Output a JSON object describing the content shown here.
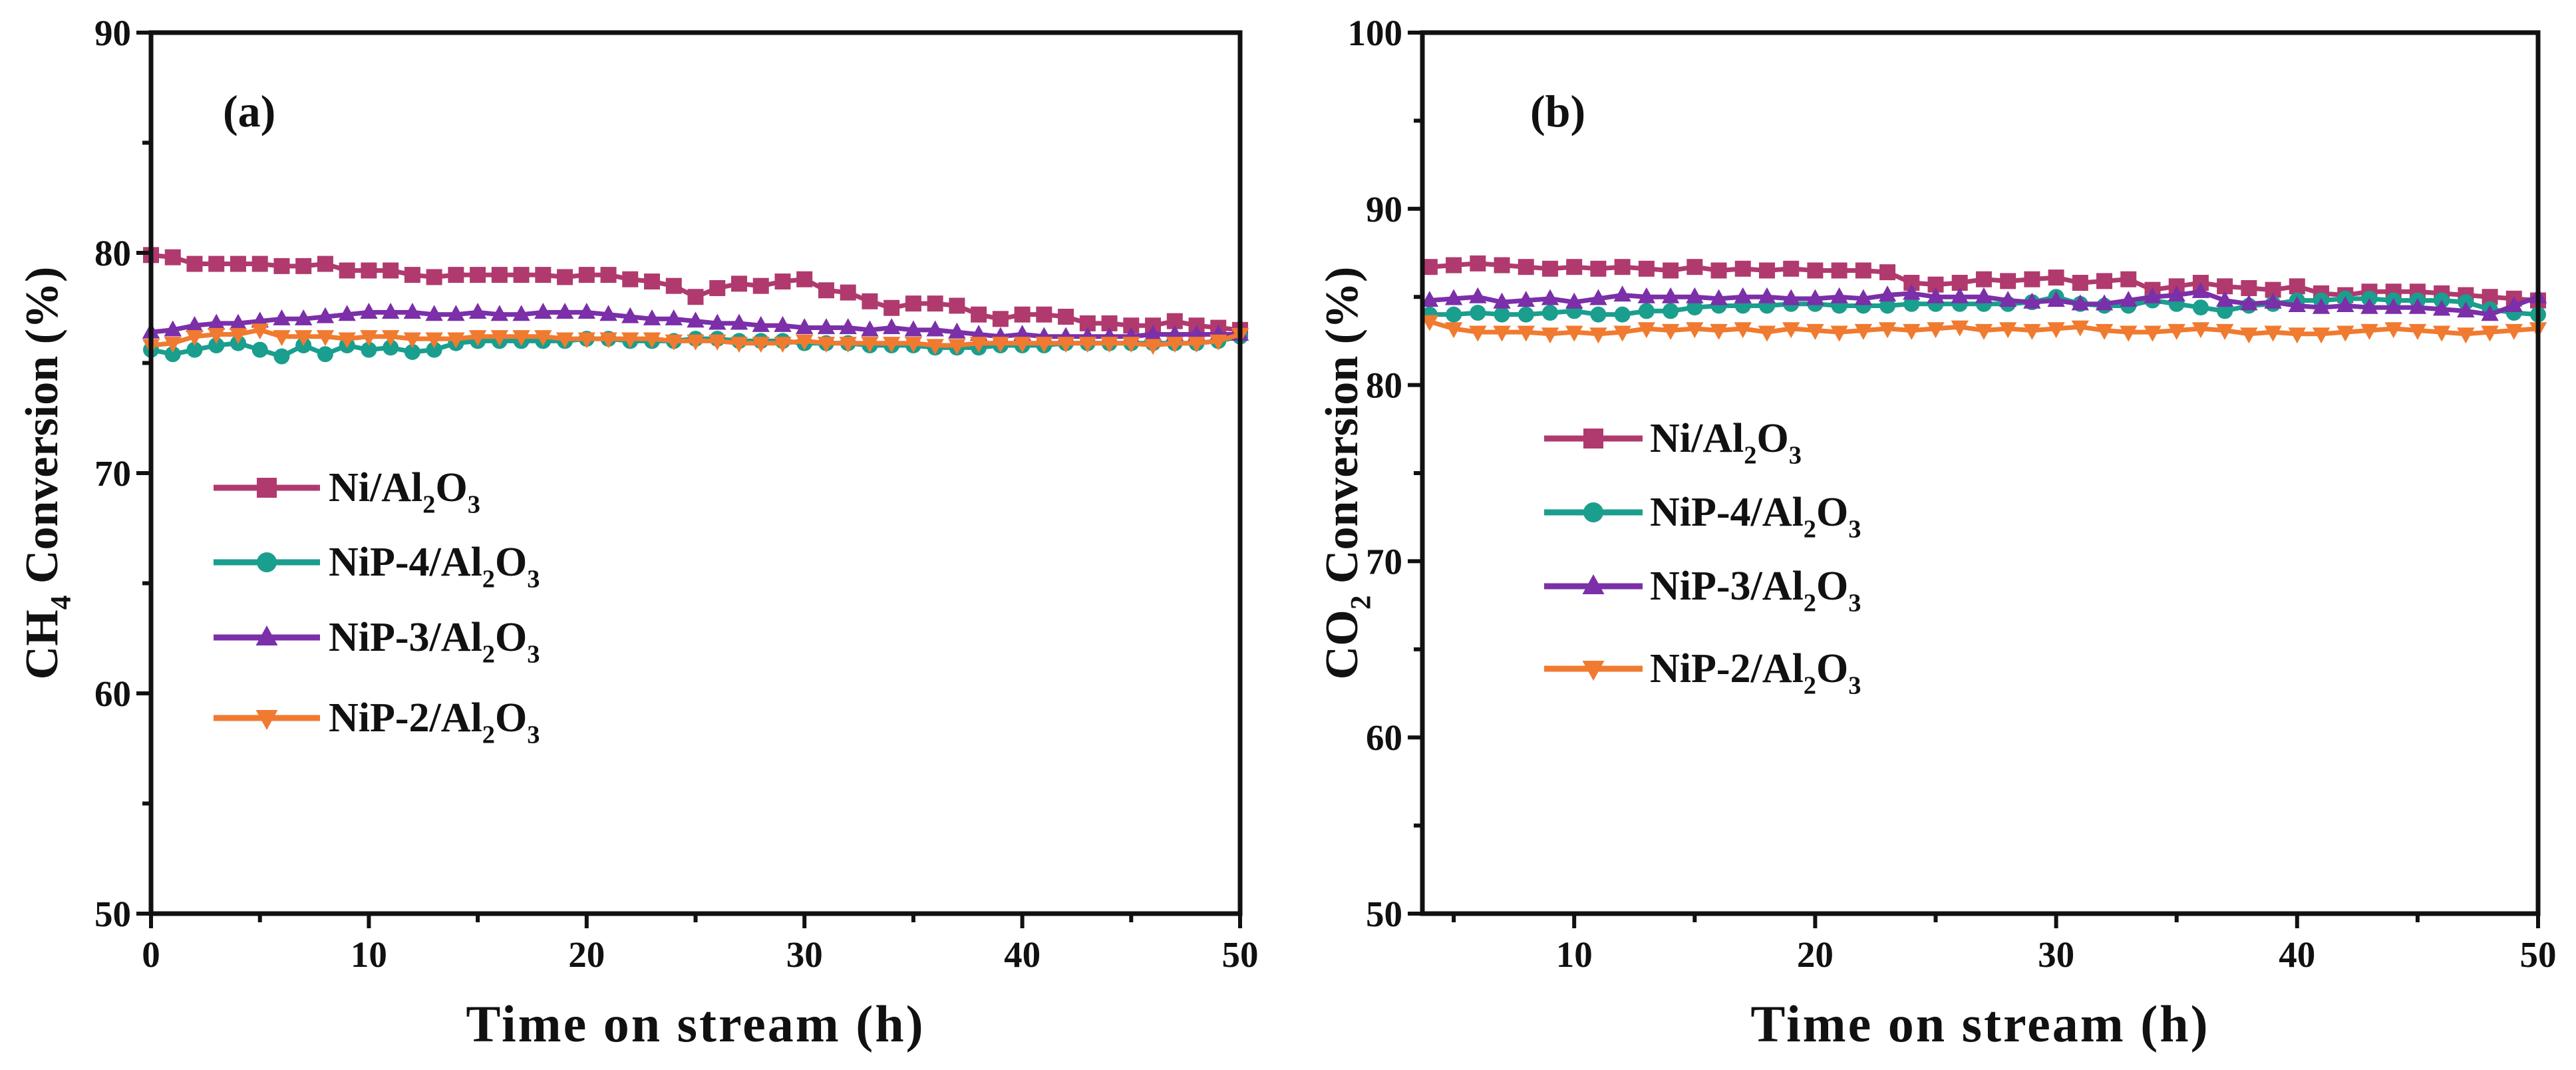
{
  "chart_data": [
    {
      "type": "line",
      "panel_label": "(a)",
      "xlabel": "Time on stream (h)",
      "ylabel": "CH4 Conversion (%)",
      "xlim": [
        0,
        50
      ],
      "ylim": [
        50,
        90
      ],
      "xticks": [
        0,
        10,
        20,
        30,
        40,
        50
      ],
      "yticks": [
        50,
        60,
        70,
        80,
        90
      ],
      "grid": false,
      "legend_position": "center-left",
      "x_start": 0,
      "x_step": 1,
      "series": [
        {
          "name": "Ni/Al2O3",
          "color": "#b03a6e",
          "marker": "square",
          "values": [
            79.9,
            79.8,
            79.5,
            79.5,
            79.5,
            79.5,
            79.4,
            79.4,
            79.5,
            79.2,
            79.2,
            79.2,
            79.0,
            78.9,
            79.0,
            79.0,
            79.0,
            79.0,
            79.0,
            78.9,
            79.0,
            79.0,
            78.8,
            78.7,
            78.5,
            78.0,
            78.4,
            78.6,
            78.5,
            78.7,
            78.8,
            78.3,
            78.2,
            77.8,
            77.5,
            77.7,
            77.7,
            77.6,
            77.2,
            77.0,
            77.2,
            77.2,
            77.1,
            76.8,
            76.8,
            76.7,
            76.7,
            76.9,
            76.7,
            76.6,
            76.5
          ]
        },
        {
          "name": "NiP-4/Al2O3",
          "color": "#1a9e8e",
          "marker": "circle",
          "values": [
            75.6,
            75.4,
            75.6,
            75.8,
            75.9,
            75.6,
            75.3,
            75.8,
            75.4,
            75.8,
            75.6,
            75.7,
            75.5,
            75.6,
            75.9,
            76.0,
            76.0,
            76.0,
            76.0,
            76.0,
            76.1,
            76.1,
            76.0,
            76.0,
            76.0,
            76.1,
            76.1,
            76.0,
            76.0,
            76.0,
            75.9,
            75.9,
            75.9,
            75.8,
            75.8,
            75.8,
            75.7,
            75.7,
            75.7,
            75.8,
            75.8,
            75.8,
            75.9,
            75.9,
            75.9,
            75.9,
            75.9,
            75.9,
            75.9,
            76.0,
            76.2
          ]
        },
        {
          "name": "NiP-3/Al2O3",
          "color": "#7b2fa8",
          "marker": "triangle-up",
          "values": [
            76.4,
            76.5,
            76.7,
            76.8,
            76.8,
            76.9,
            77.0,
            77.0,
            77.1,
            77.2,
            77.3,
            77.3,
            77.3,
            77.2,
            77.2,
            77.3,
            77.2,
            77.2,
            77.3,
            77.3,
            77.3,
            77.2,
            77.1,
            77.0,
            77.0,
            76.9,
            76.8,
            76.8,
            76.7,
            76.7,
            76.6,
            76.6,
            76.6,
            76.5,
            76.6,
            76.5,
            76.5,
            76.4,
            76.3,
            76.2,
            76.3,
            76.2,
            76.2,
            76.2,
            76.2,
            76.2,
            76.3,
            76.3,
            76.3,
            76.3,
            76.3
          ]
        },
        {
          "name": "NiP-2/Al2O3",
          "color": "#f07a30",
          "marker": "triangle-down",
          "values": [
            75.8,
            75.9,
            76.2,
            76.3,
            76.3,
            76.5,
            76.2,
            76.2,
            76.2,
            76.1,
            76.2,
            76.2,
            76.1,
            76.1,
            76.1,
            76.2,
            76.2,
            76.2,
            76.2,
            76.1,
            76.1,
            76.1,
            76.1,
            76.1,
            76.0,
            76.0,
            76.0,
            75.9,
            75.9,
            75.9,
            76.0,
            75.9,
            75.9,
            75.9,
            75.9,
            75.9,
            75.8,
            75.8,
            75.9,
            75.9,
            75.9,
            75.9,
            75.9,
            75.9,
            75.9,
            75.9,
            75.8,
            75.9,
            75.9,
            76.0,
            76.3
          ]
        }
      ]
    },
    {
      "type": "line",
      "panel_label": "(b)",
      "xlabel": "Time on stream (h)",
      "ylabel": "CO2 Conversion (%)",
      "xlim": [
        3.7,
        50
      ],
      "ylim": [
        50,
        100
      ],
      "xticks": [
        10,
        20,
        30,
        40,
        50
      ],
      "yticks": [
        50,
        60,
        70,
        80,
        90,
        100
      ],
      "grid": false,
      "legend_position": "center-left",
      "x_start": 4,
      "x_step": 1,
      "series": [
        {
          "name": "Ni/Al2O3",
          "color": "#b03a6e",
          "marker": "square",
          "values": [
            86.7,
            86.8,
            86.9,
            86.8,
            86.7,
            86.6,
            86.7,
            86.6,
            86.7,
            86.6,
            86.5,
            86.7,
            86.5,
            86.6,
            86.5,
            86.6,
            86.5,
            86.5,
            86.5,
            86.4,
            85.8,
            85.7,
            85.8,
            86.0,
            85.9,
            86.0,
            86.1,
            85.8,
            85.9,
            86.0,
            85.4,
            85.6,
            85.8,
            85.6,
            85.5,
            85.4,
            85.6,
            85.2,
            85.1,
            85.3,
            85.3,
            85.3,
            85.2,
            85.1,
            85.0,
            84.9,
            84.8
          ]
        },
        {
          "name": "NiP-4/Al2O3",
          "color": "#1a9e8e",
          "marker": "circle",
          "values": [
            84.0,
            84.0,
            84.1,
            84.0,
            84.0,
            84.1,
            84.2,
            84.0,
            84.0,
            84.2,
            84.2,
            84.4,
            84.5,
            84.5,
            84.5,
            84.6,
            84.6,
            84.5,
            84.5,
            84.5,
            84.6,
            84.6,
            84.6,
            84.6,
            84.6,
            84.7,
            85.0,
            84.6,
            84.5,
            84.5,
            84.8,
            84.6,
            84.4,
            84.2,
            84.5,
            84.6,
            84.8,
            84.8,
            84.9,
            84.9,
            84.8,
            84.8,
            84.8,
            84.7,
            84.3,
            84.1,
            84.0
          ]
        },
        {
          "name": "NiP-3/Al2O3",
          "color": "#7b2fa8",
          "marker": "triangle-up",
          "values": [
            84.8,
            84.9,
            85.0,
            84.7,
            84.8,
            84.9,
            84.7,
            84.9,
            85.1,
            85.0,
            85.0,
            85.0,
            84.9,
            85.0,
            85.0,
            84.9,
            84.9,
            85.0,
            84.9,
            85.1,
            85.2,
            85.0,
            85.0,
            85.0,
            84.8,
            84.7,
            84.8,
            84.6,
            84.6,
            84.8,
            85.0,
            85.1,
            85.3,
            84.8,
            84.6,
            84.7,
            84.5,
            84.4,
            84.5,
            84.4,
            84.4,
            84.4,
            84.3,
            84.2,
            84.0,
            84.5,
            85.0
          ]
        },
        {
          "name": "NiP-2/Al2O3",
          "color": "#f07a30",
          "marker": "triangle-down",
          "values": [
            83.6,
            83.2,
            83.0,
            83.0,
            83.0,
            82.9,
            83.0,
            82.9,
            83.0,
            83.2,
            83.1,
            83.2,
            83.1,
            83.2,
            83.0,
            83.2,
            83.1,
            83.0,
            83.1,
            83.2,
            83.1,
            83.2,
            83.3,
            83.1,
            83.2,
            83.1,
            83.2,
            83.3,
            83.1,
            83.0,
            83.0,
            83.1,
            83.2,
            83.1,
            82.9,
            83.0,
            82.9,
            82.9,
            83.0,
            83.1,
            83.2,
            83.1,
            83.0,
            82.9,
            83.0,
            83.1,
            83.2
          ]
        }
      ]
    }
  ]
}
